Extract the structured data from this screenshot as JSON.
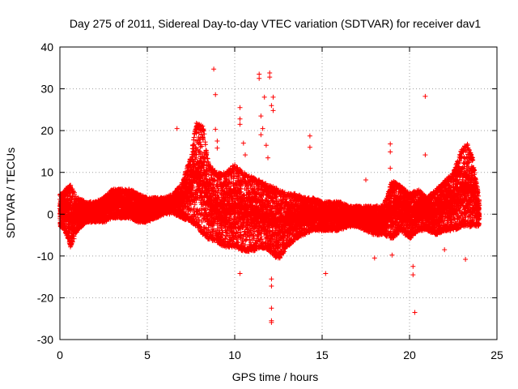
{
  "chart_data": {
    "type": "scatter",
    "title": "Day 275 of 2011, Sidereal Day-to-day VTEC variation (SDTVAR) for receiver dav1",
    "xlabel": "GPS time / hours",
    "ylabel": "SDTVAR / TECUs",
    "xlim": [
      0,
      25
    ],
    "ylim": [
      -30,
      40
    ],
    "xticks": [
      0,
      5,
      10,
      15,
      20,
      25
    ],
    "yticks": [
      -30,
      -20,
      -10,
      0,
      10,
      20,
      30,
      40
    ],
    "grid": true,
    "marker": "+",
    "color": "#ff0000",
    "envelope": {
      "x": [
        0,
        0.3,
        0.6,
        1.0,
        1.5,
        2.0,
        2.5,
        3.0,
        3.5,
        4.0,
        4.5,
        5.0,
        5.5,
        6.0,
        6.5,
        7.0,
        7.5,
        7.8,
        8.2,
        8.5,
        9.0,
        9.5,
        10.0,
        10.5,
        11.0,
        11.5,
        12.0,
        12.5,
        13.0,
        13.5,
        14.0,
        14.5,
        15.0,
        15.5,
        16.0,
        16.5,
        17.0,
        17.5,
        18.0,
        18.5,
        19.0,
        19.5,
        20.0,
        20.5,
        21.0,
        21.5,
        22.0,
        22.5,
        23.0,
        23.3,
        23.6,
        24.0
      ],
      "upper": [
        5,
        6,
        7,
        4,
        3,
        3,
        4,
        6,
        6,
        6,
        5,
        4,
        4,
        4,
        5,
        8,
        14,
        22,
        21,
        12,
        10,
        10,
        12,
        10,
        9,
        8,
        7,
        6,
        5,
        5,
        4,
        4,
        3,
        3,
        3,
        2,
        2,
        2,
        2,
        2,
        8,
        7,
        5,
        6,
        4,
        6,
        8,
        10,
        16,
        17,
        14,
        3
      ],
      "lower": [
        -3,
        -4,
        -8,
        -4,
        -2,
        -2,
        -2,
        -1,
        -1,
        -1,
        -2,
        -2,
        -1,
        0,
        0,
        -1,
        -2,
        -3,
        -5,
        -6,
        -7,
        -8,
        -8,
        -9,
        -9,
        -8,
        -9,
        -11,
        -8,
        -6,
        -5,
        -4,
        -4,
        -4,
        -4,
        -3,
        -3,
        -4,
        -5,
        -5,
        -6,
        -4,
        -6,
        -4,
        -4,
        -5,
        -4,
        -4,
        -3,
        -3,
        -3,
        -3
      ]
    },
    "outliers": [
      [
        6.7,
        20.5
      ],
      [
        8.8,
        34.7
      ],
      [
        8.9,
        28.6
      ],
      [
        8.9,
        20.3
      ],
      [
        9.0,
        17.5
      ],
      [
        9.0,
        15.8
      ],
      [
        10.3,
        25.5
      ],
      [
        10.3,
        22.8
      ],
      [
        10.3,
        21.5
      ],
      [
        10.3,
        -14.2
      ],
      [
        10.5,
        17.0
      ],
      [
        10.6,
        14.2
      ],
      [
        11.4,
        33.5
      ],
      [
        11.4,
        32.5
      ],
      [
        11.5,
        23.5
      ],
      [
        11.5,
        19.0
      ],
      [
        11.6,
        20.5
      ],
      [
        11.7,
        28.0
      ],
      [
        11.8,
        16.5
      ],
      [
        11.9,
        13.5
      ],
      [
        12.0,
        33.8
      ],
      [
        12.0,
        32.8
      ],
      [
        12.1,
        26.0
      ],
      [
        12.2,
        28.0
      ],
      [
        12.2,
        24.8
      ],
      [
        12.1,
        -15.5
      ],
      [
        12.1,
        -17.2
      ],
      [
        12.1,
        -22.5
      ],
      [
        12.1,
        -25.5
      ],
      [
        12.1,
        -25.9
      ],
      [
        14.3,
        18.7
      ],
      [
        14.3,
        16.0
      ],
      [
        15.2,
        -14.2
      ],
      [
        18.9,
        16.8
      ],
      [
        18.9,
        14.9
      ],
      [
        18.9,
        11.0
      ],
      [
        20.2,
        -12.5
      ],
      [
        20.2,
        -14.5
      ],
      [
        20.3,
        -23.5
      ],
      [
        20.9,
        28.2
      ],
      [
        20.9,
        14.2
      ],
      [
        23.2,
        -10.8
      ],
      [
        17.5,
        8.2
      ],
      [
        19.0,
        -9.8
      ],
      [
        18.0,
        -10.5
      ],
      [
        22.0,
        -8.5
      ]
    ],
    "points_per_hour": 110
  }
}
